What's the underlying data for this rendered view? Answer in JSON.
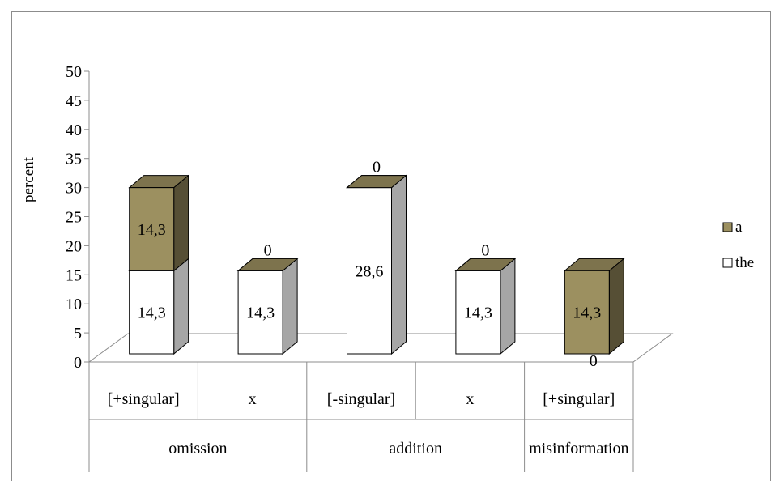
{
  "chart_data": {
    "type": "bar",
    "stacked": true,
    "three_d": true,
    "title": "",
    "xlabel": "",
    "ylabel": "percent",
    "ylim": [
      0,
      50
    ],
    "y_ticks": [
      "0",
      "5",
      "10",
      "15",
      "20",
      "25",
      "30",
      "35",
      "40",
      "45",
      "50"
    ],
    "categories": [
      "[+singular]",
      "x",
      "[-singular]",
      "x",
      "[+singular]"
    ],
    "groups": [
      {
        "label": "omission",
        "categories": [
          0,
          1
        ]
      },
      {
        "label": "addition",
        "categories": [
          2,
          3
        ]
      },
      {
        "label": "misinformation",
        "categories": [
          4
        ]
      }
    ],
    "series": [
      {
        "name": "the",
        "values": [
          14.3,
          14.3,
          28.6,
          14.3,
          0
        ],
        "labels": [
          "14,3",
          "14,3",
          "28,6",
          "14,3",
          "0"
        ],
        "color": "#ffffff"
      },
      {
        "name": "a",
        "values": [
          14.3,
          0,
          0,
          0,
          14.3
        ],
        "labels": [
          "14,3",
          "0",
          "0",
          "0",
          "14,3"
        ],
        "color": "#9c9060"
      }
    ],
    "legend_position": "right",
    "grid": false
  }
}
